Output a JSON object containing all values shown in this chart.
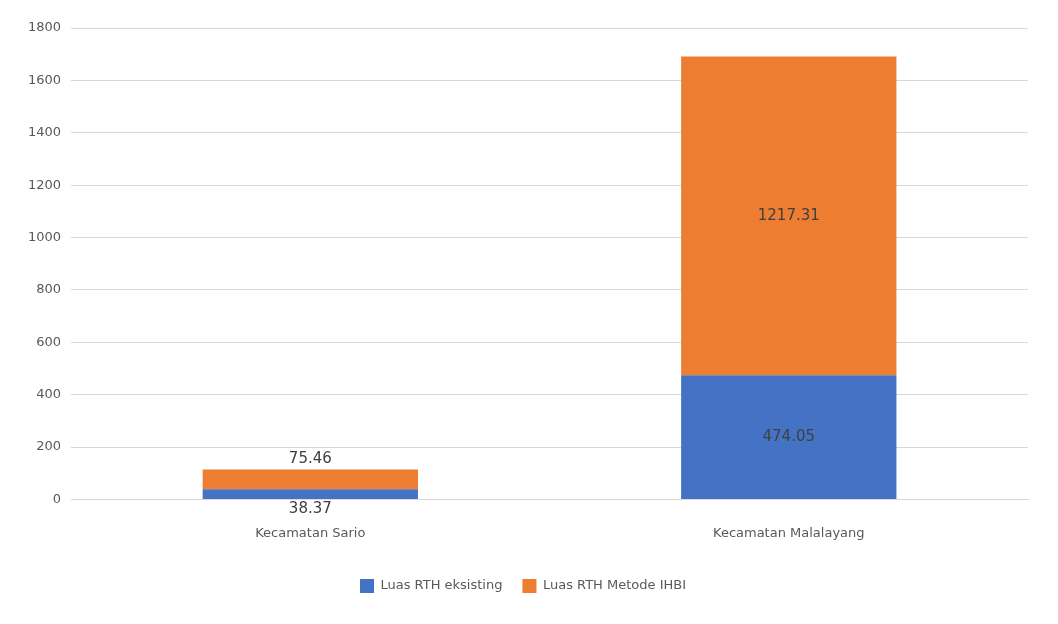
{
  "chart_data": {
    "type": "bar",
    "stacked": true,
    "categories": [
      "Kecamatan Sario",
      "Kecamatan Malalayang"
    ],
    "series": [
      {
        "name": "Luas RTH eksisting",
        "color": "#4472c4",
        "values": [
          38.37,
          474.05
        ]
      },
      {
        "name": "Luas RTH Metode IHBI",
        "color": "#ed7d31",
        "values": [
          75.46,
          1217.31
        ]
      }
    ],
    "ylim": [
      0,
      1800
    ],
    "yticks": [
      0,
      200,
      400,
      600,
      800,
      1000,
      1200,
      1400,
      1600,
      1800
    ],
    "grid": "y",
    "legend": "bottom",
    "data_labels": true
  }
}
